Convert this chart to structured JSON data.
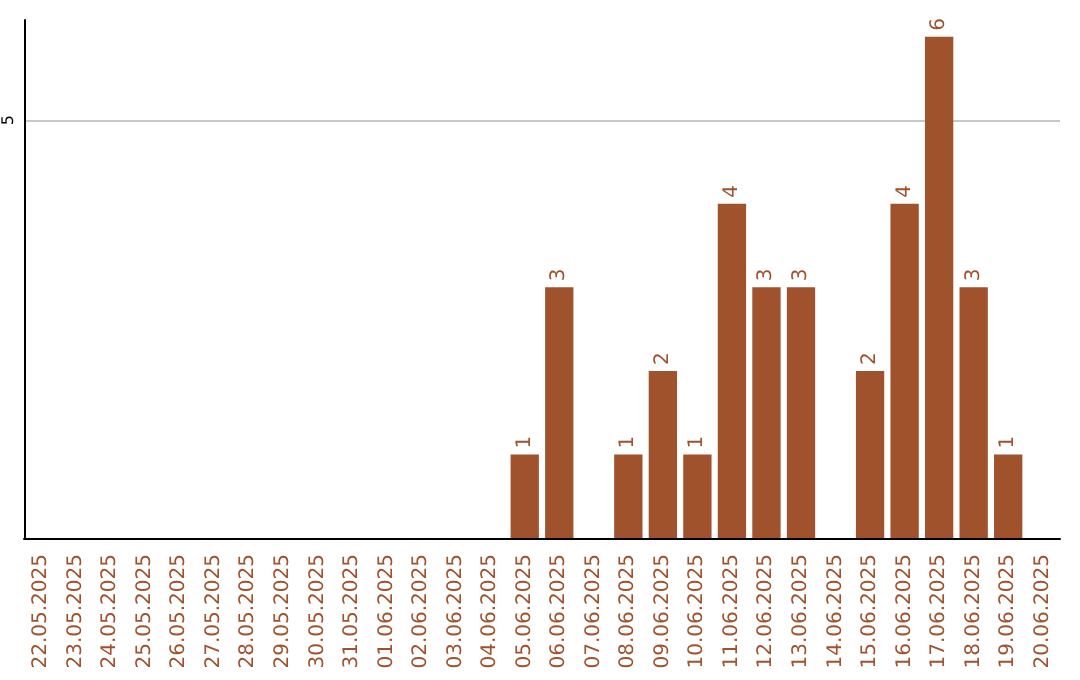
{
  "chart_data": {
    "type": "bar",
    "categories": [
      "22.05.2025",
      "23.05.2025",
      "24.05.2025",
      "25.05.2025",
      "26.05.2025",
      "27.05.2025",
      "28.05.2025",
      "29.05.2025",
      "30.05.2025",
      "31.05.2025",
      "01.06.2025",
      "02.06.2025",
      "03.06.2025",
      "04.06.2025",
      "05.06.2025",
      "06.06.2025",
      "07.06.2025",
      "08.06.2025",
      "09.06.2025",
      "10.06.2025",
      "11.06.2025",
      "12.06.2025",
      "13.06.2025",
      "14.06.2025",
      "15.06.2025",
      "16.06.2025",
      "17.06.2025",
      "18.06.2025",
      "19.06.2025",
      "20.06.2025"
    ],
    "values": [
      null,
      null,
      null,
      null,
      null,
      null,
      null,
      null,
      null,
      null,
      null,
      null,
      null,
      null,
      1,
      3,
      null,
      1,
      2,
      1,
      4,
      3,
      3,
      null,
      2,
      4,
      6,
      3,
      1,
      null
    ],
    "color": "#a0522d",
    "ylim": [
      0,
      6.2
    ],
    "yticks": [
      5
    ],
    "grid": "y",
    "data_labels": true
  }
}
